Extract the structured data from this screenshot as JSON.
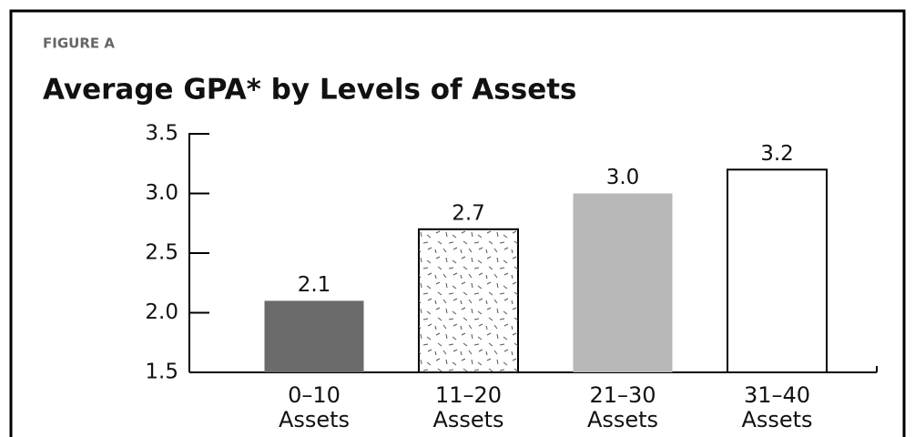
{
  "chart_data": {
    "type": "bar",
    "label": "FIGURE A",
    "title": "Average GPA* by Levels of Assets",
    "categories": [
      "0–10 Assets",
      "11–20 Assets",
      "21–30 Assets",
      "31–40 Assets"
    ],
    "values": [
      2.1,
      2.7,
      3,
      3.2
    ],
    "value_labels": [
      "2.1",
      "2.7",
      "3.0",
      "3.2"
    ],
    "colors": [
      "#6b6b6b",
      "#ffffff",
      "#b8b8b8",
      "#ffffff"
    ],
    "speckled": [
      false,
      true,
      false,
      false
    ],
    "ylim": [
      1.5,
      3.5
    ],
    "yticks": [
      1.5,
      {
        "value": 2,
        "label": "2.0"
      },
      2.5,
      {
        "value": 3,
        "label": "3.0"
      },
      3.5
    ],
    "grid": false
  }
}
